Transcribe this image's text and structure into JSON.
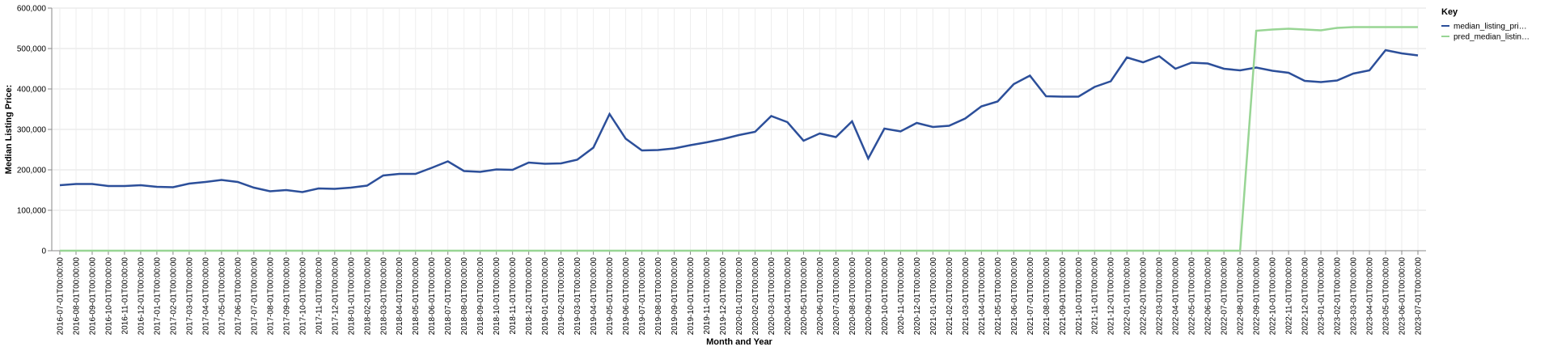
{
  "chart_data": {
    "type": "line",
    "x_label": "Month and Year",
    "y_label": "Median Listing Price:",
    "legend_title": "Key",
    "legend_position": "right",
    "grid": true,
    "x": [
      "2016-07-01T00:00:00",
      "2016-08-01T00:00:00",
      "2016-09-01T00:00:00",
      "2016-10-01T00:00:00",
      "2016-11-01T00:00:00",
      "2016-12-01T00:00:00",
      "2017-01-01T00:00:00",
      "2017-02-01T00:00:00",
      "2017-03-01T00:00:00",
      "2017-04-01T00:00:00",
      "2017-05-01T00:00:00",
      "2017-06-01T00:00:00",
      "2017-07-01T00:00:00",
      "2017-08-01T00:00:00",
      "2017-09-01T00:00:00",
      "2017-10-01T00:00:00",
      "2017-11-01T00:00:00",
      "2017-12-01T00:00:00",
      "2018-01-01T00:00:00",
      "2018-02-01T00:00:00",
      "2018-03-01T00:00:00",
      "2018-04-01T00:00:00",
      "2018-05-01T00:00:00",
      "2018-06-01T00:00:00",
      "2018-07-01T00:00:00",
      "2018-08-01T00:00:00",
      "2018-09-01T00:00:00",
      "2018-10-01T00:00:00",
      "2018-11-01T00:00:00",
      "2018-12-01T00:00:00",
      "2019-01-01T00:00:00",
      "2019-02-01T00:00:00",
      "2019-03-01T00:00:00",
      "2019-04-01T00:00:00",
      "2019-05-01T00:00:00",
      "2019-06-01T00:00:00",
      "2019-07-01T00:00:00",
      "2019-08-01T00:00:00",
      "2019-09-01T00:00:00",
      "2019-10-01T00:00:00",
      "2019-11-01T00:00:00",
      "2019-12-01T00:00:00",
      "2020-01-01T00:00:00",
      "2020-02-01T00:00:00",
      "2020-03-01T00:00:00",
      "2020-04-01T00:00:00",
      "2020-05-01T00:00:00",
      "2020-06-01T00:00:00",
      "2020-07-01T00:00:00",
      "2020-08-01T00:00:00",
      "2020-09-01T00:00:00",
      "2020-10-01T00:00:00",
      "2020-11-01T00:00:00",
      "2020-12-01T00:00:00",
      "2021-01-01T00:00:00",
      "2021-02-01T00:00:00",
      "2021-03-01T00:00:00",
      "2021-04-01T00:00:00",
      "2021-05-01T00:00:00",
      "2021-06-01T00:00:00",
      "2021-07-01T00:00:00",
      "2021-08-01T00:00:00",
      "2021-09-01T00:00:00",
      "2021-10-01T00:00:00",
      "2021-11-01T00:00:00",
      "2021-12-01T00:00:00",
      "2022-01-01T00:00:00",
      "2022-02-01T00:00:00",
      "2022-03-01T00:00:00",
      "2022-04-01T00:00:00",
      "2022-05-01T00:00:00",
      "2022-06-01T00:00:00",
      "2022-07-01T00:00:00",
      "2022-08-01T00:00:00",
      "2022-09-01T00:00:00",
      "2022-10-01T00:00:00",
      "2022-11-01T00:00:00",
      "2022-12-01T00:00:00",
      "2023-01-01T00:00:00",
      "2023-02-01T00:00:00",
      "2023-03-01T00:00:00",
      "2023-04-01T00:00:00",
      "2023-05-01T00:00:00",
      "2023-06-01T00:00:00",
      "2023-07-01T00:00:00"
    ],
    "series": [
      {
        "name": "median_listing_pri…",
        "color": "#2c4f9a",
        "values": [
          162000,
          165000,
          165000,
          160000,
          160000,
          162000,
          158000,
          157000,
          166000,
          170000,
          175000,
          170000,
          156000,
          147000,
          150000,
          145000,
          154000,
          153000,
          156000,
          161000,
          186000,
          190000,
          190000,
          205000,
          221000,
          197000,
          195000,
          201000,
          200000,
          218000,
          215000,
          216000,
          225000,
          255000,
          338000,
          277000,
          248000,
          249000,
          253000,
          261000,
          268000,
          276000,
          286000,
          294000,
          333000,
          318000,
          272000,
          290000,
          281000,
          320000,
          228000,
          302000,
          295000,
          316000,
          306000,
          309000,
          327000,
          357000,
          369000,
          412000,
          433000,
          382000,
          381000,
          381000,
          405000,
          419000,
          478000,
          466000,
          481000,
          450000,
          465000,
          463000,
          450000,
          446000,
          453000,
          445000,
          440000,
          420000,
          417000,
          421000,
          438000,
          446000,
          496000,
          488000,
          483000
        ]
      },
      {
        "name": "pred_median_listin…",
        "color": "#98d594",
        "values": [
          0,
          0,
          0,
          0,
          0,
          0,
          0,
          0,
          0,
          0,
          0,
          0,
          0,
          0,
          0,
          0,
          0,
          0,
          0,
          0,
          0,
          0,
          0,
          0,
          0,
          0,
          0,
          0,
          0,
          0,
          0,
          0,
          0,
          0,
          0,
          0,
          0,
          0,
          0,
          0,
          0,
          0,
          0,
          0,
          0,
          0,
          0,
          0,
          0,
          0,
          0,
          0,
          0,
          0,
          0,
          0,
          0,
          0,
          0,
          0,
          0,
          0,
          0,
          0,
          0,
          0,
          0,
          0,
          0,
          0,
          0,
          0,
          0,
          0,
          544000,
          547000,
          549000,
          547000,
          545000,
          551000,
          553000,
          553000,
          553000,
          553000,
          553000
        ]
      }
    ],
    "ylim": [
      0,
      600000
    ],
    "yticks": [
      0,
      {
        "value": 100000,
        "label": "100,000"
      },
      {
        "value": 200000,
        "label": "200,000"
      },
      {
        "value": 300000,
        "label": "300,000"
      },
      {
        "value": 400000,
        "label": "400,000"
      },
      {
        "value": 500000,
        "label": "500,000"
      },
      {
        "value": 600000,
        "label": "600,000"
      }
    ]
  }
}
